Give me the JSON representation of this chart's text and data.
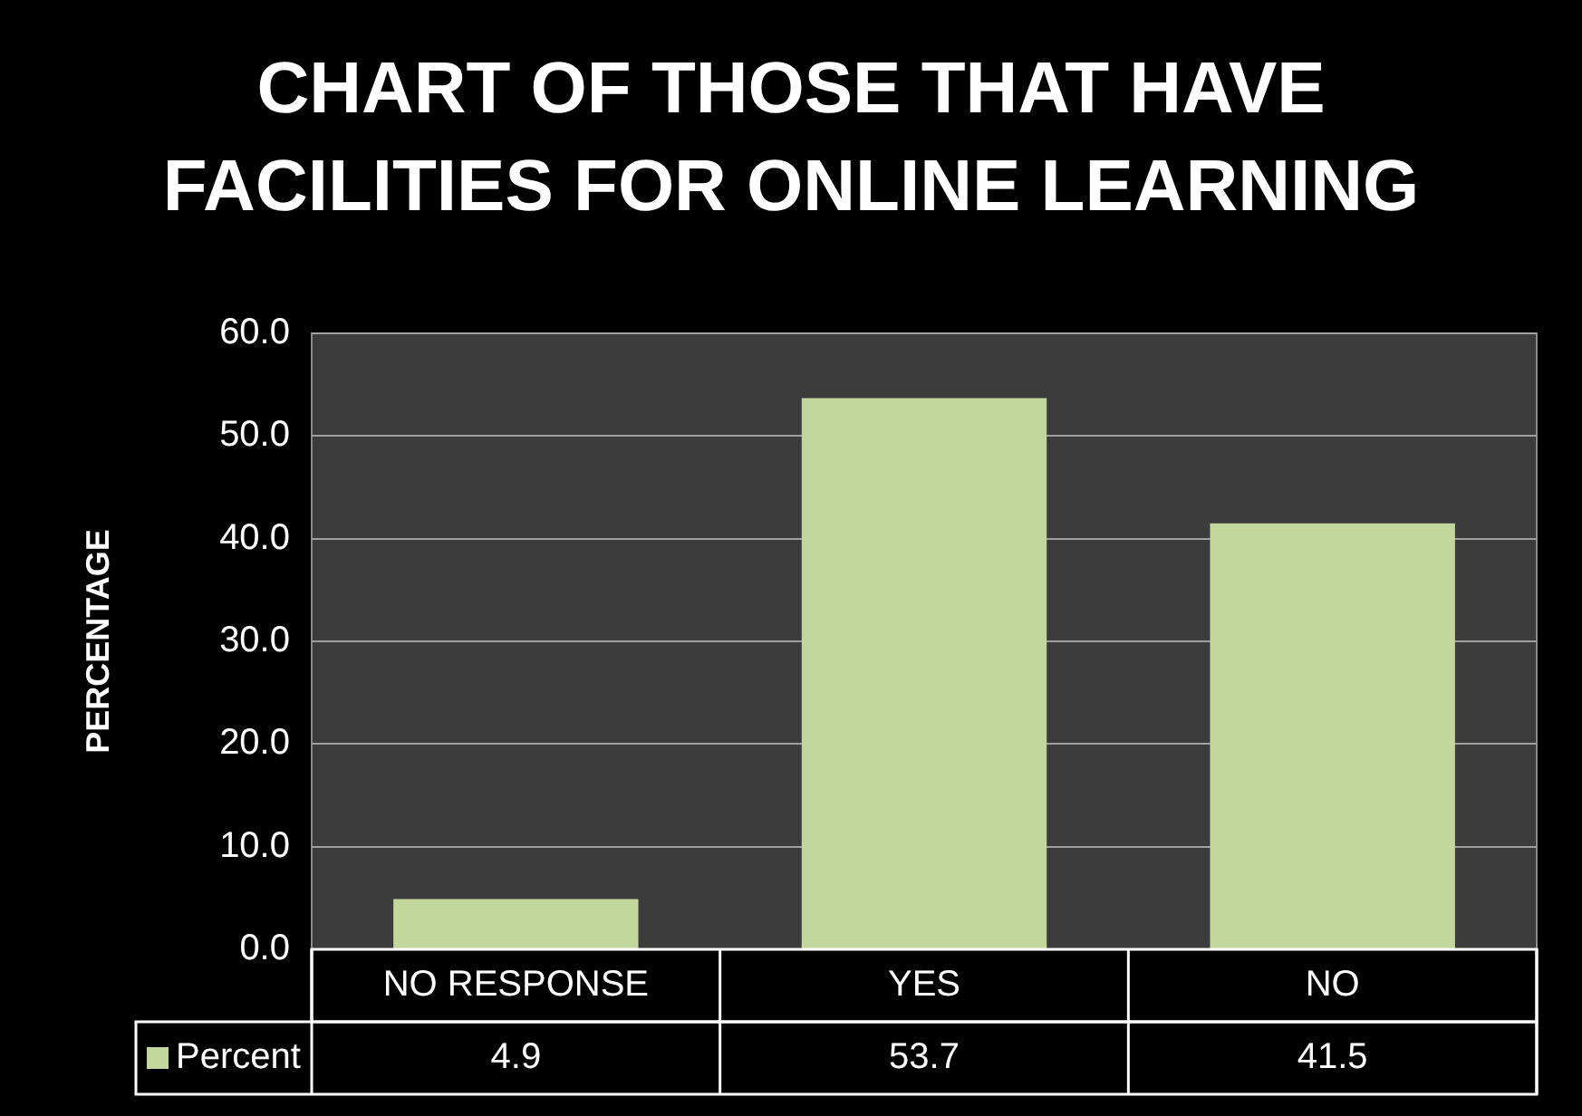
{
  "chart_data": {
    "type": "bar",
    "title": "CHART OF THOSE THAT HAVE FACILITIES FOR ONLINE LEARNING",
    "ylabel": "PERCENTAGE",
    "categories": [
      "NO RESPONSE",
      "YES",
      "NO"
    ],
    "series": [
      {
        "name": "Percent",
        "color": "#c3d69b",
        "values": [
          4.9,
          53.7,
          41.5
        ]
      }
    ],
    "ylim": [
      0,
      60
    ],
    "yticks": [
      {
        "value": 0,
        "label": "0.0"
      },
      {
        "value": 10,
        "label": "10.0"
      },
      {
        "value": 20,
        "label": "20.0"
      },
      {
        "value": 30,
        "label": "30.0"
      },
      {
        "value": 40,
        "label": "40.0"
      },
      {
        "value": 50,
        "label": "50.0"
      },
      {
        "value": 60,
        "label": "60.0"
      }
    ],
    "grid": "y",
    "legend": "bottom",
    "data_labels": true
  }
}
